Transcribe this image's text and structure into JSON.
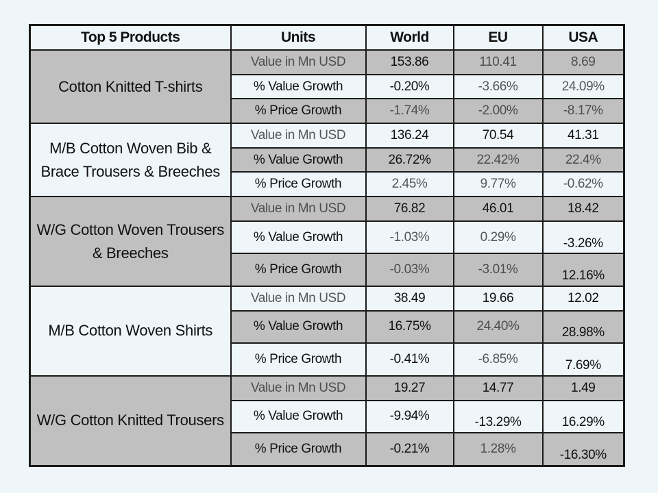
{
  "header": {
    "product": "Top 5 Products",
    "units": "Units",
    "world": "World",
    "eu": "EU",
    "usa": "USA"
  },
  "groups": [
    {
      "product": "Cotton Knitted  T-shirts",
      "rows": [
        {
          "unit": "Value in Mn USD",
          "world": "153.86",
          "eu": "110.41",
          "usa": "8.69"
        },
        {
          "unit": "% Value Growth",
          "world": "-0.20%",
          "eu": "-3.66%",
          "usa": "24.09%"
        },
        {
          "unit": "% Price Growth",
          "world": "-1.74%",
          "eu": "-2.00%",
          "usa": "-8.17%"
        }
      ]
    },
    {
      "product": "M/B Cotton Woven Bib & Brace Trousers & Breeches",
      "rows": [
        {
          "unit": "Value in Mn USD",
          "world": "136.24",
          "eu": "70.54",
          "usa": "41.31"
        },
        {
          "unit": "% Value Growth",
          "world": "26.72%",
          "eu": "22.42%",
          "usa": "22.4%"
        },
        {
          "unit": "% Price Growth",
          "world": "2.45%",
          "eu": "9.77%",
          "usa": "-0.62%"
        }
      ]
    },
    {
      "product": "W/G Cotton Woven Trousers & Breeches",
      "rows": [
        {
          "unit": "Value in Mn USD",
          "world": "76.82",
          "eu": "46.01",
          "usa": "18.42"
        },
        {
          "unit": "% Value Growth",
          "world": "-1.03%",
          "eu": "0.29%",
          "usa": "-3.26%"
        },
        {
          "unit": "% Price Growth",
          "world": "-0.03%",
          "eu": "-3.01%",
          "usa": "12.16%"
        }
      ]
    },
    {
      "product": "M/B Cotton Woven  Shirts",
      "rows": [
        {
          "unit": "Value in Mn USD",
          "world": "38.49",
          "eu": "19.66",
          "usa": "12.02"
        },
        {
          "unit": "% Value Growth",
          "world": "16.75%",
          "eu": "24.40%",
          "usa": "28.98%"
        },
        {
          "unit": "% Price Growth",
          "world": "-0.41%",
          "eu": "-6.85%",
          "usa": "7.69%"
        }
      ]
    },
    {
      "product": "W/G Cotton Knitted Trousers",
      "rows": [
        {
          "unit": "Value in Mn USD",
          "world": "19.27",
          "eu": "14.77",
          "usa": "1.49"
        },
        {
          "unit": "% Value Growth",
          "world": "-9.94%",
          "eu": "-13.29%",
          "usa": "16.29%"
        },
        {
          "unit": "% Price Growth",
          "world": "-0.21%",
          "eu": "1.28%",
          "usa": "-16.30%"
        }
      ]
    }
  ]
}
